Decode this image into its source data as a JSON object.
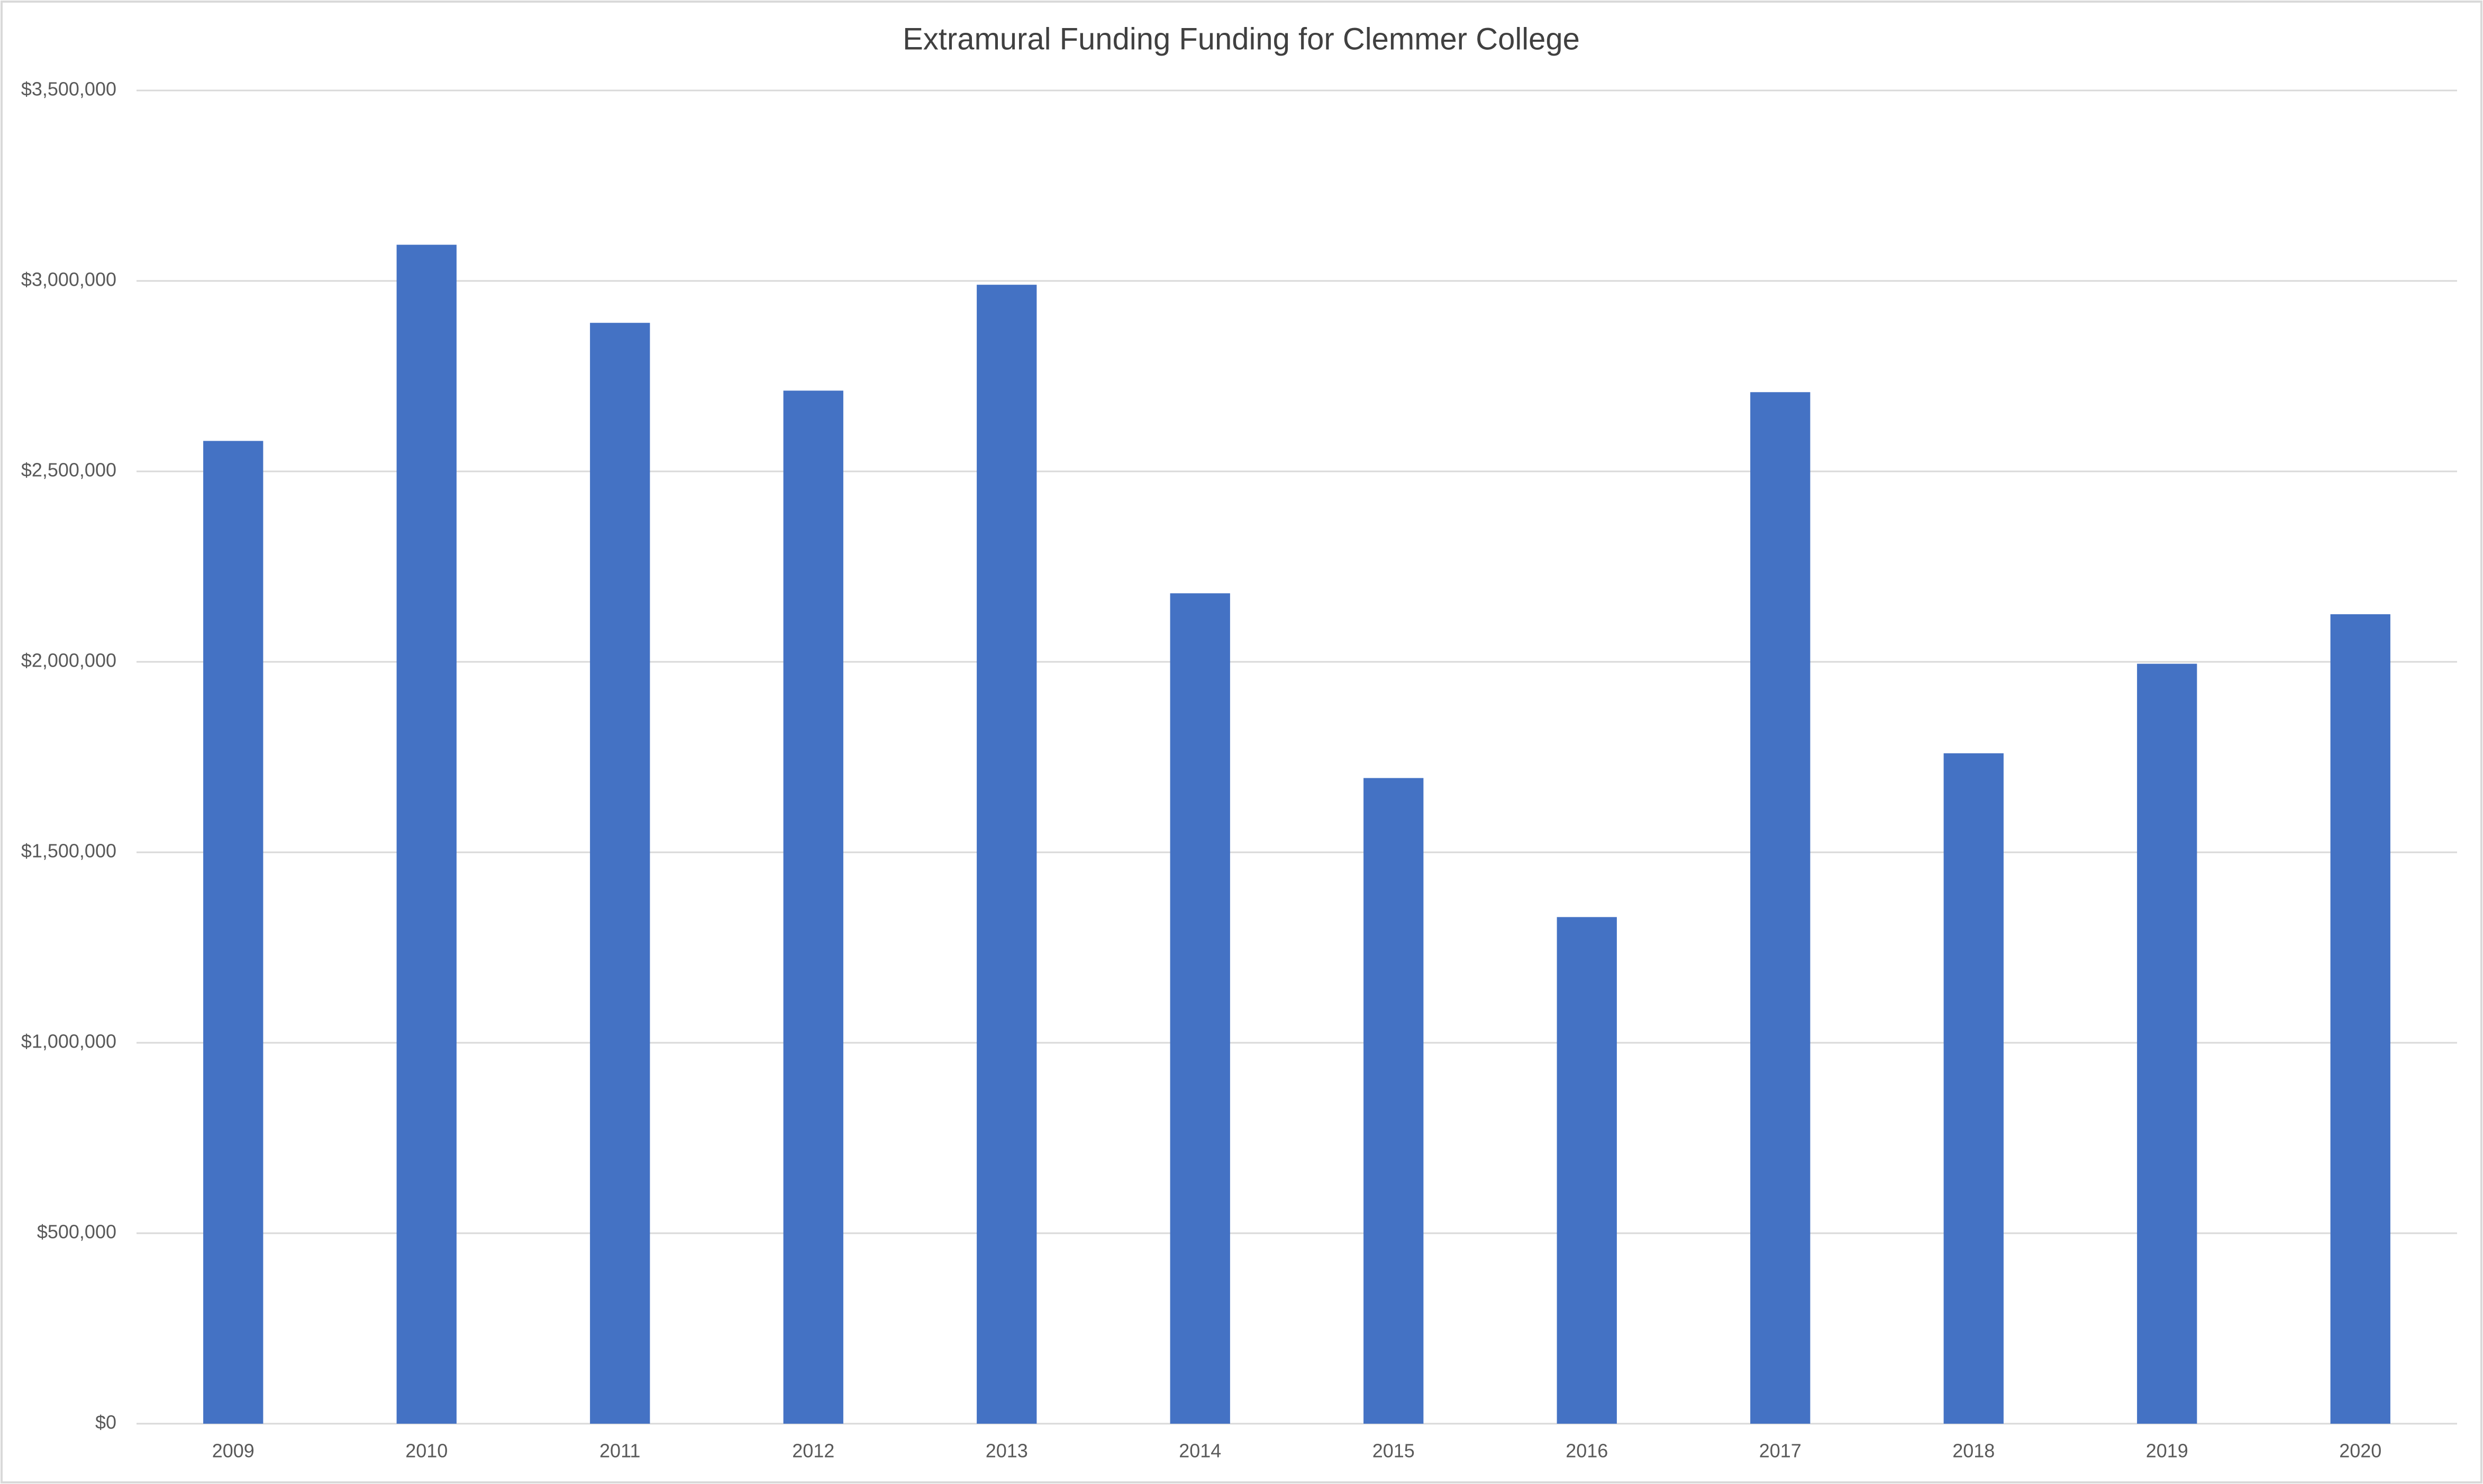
{
  "chart_data": {
    "type": "bar",
    "title": "Extramural Funding Funding for Clemmer College",
    "categories": [
      "2009",
      "2010",
      "2011",
      "2012",
      "2013",
      "2014",
      "2015",
      "2016",
      "2017",
      "2018",
      "2019",
      "2020"
    ],
    "values": [
      2580000,
      3095000,
      2890000,
      2712000,
      2990000,
      2180000,
      1695000,
      1330000,
      2708000,
      1760000,
      1995000,
      2125000
    ],
    "color": "#4472c4",
    "ylim": [
      0,
      3500000
    ],
    "yticks": [
      {
        "value": 0,
        "label": "$0"
      },
      {
        "value": 500000,
        "label": "$500,000"
      },
      {
        "value": 1000000,
        "label": "$1,000,000"
      },
      {
        "value": 1500000,
        "label": "$1,500,000"
      },
      {
        "value": 2000000,
        "label": "$2,000,000"
      },
      {
        "value": 2500000,
        "label": "$2,500,000"
      },
      {
        "value": 3000000,
        "label": "$3,000,000"
      },
      {
        "value": 3500000,
        "label": "$3,500,000"
      }
    ],
    "grid": true
  }
}
